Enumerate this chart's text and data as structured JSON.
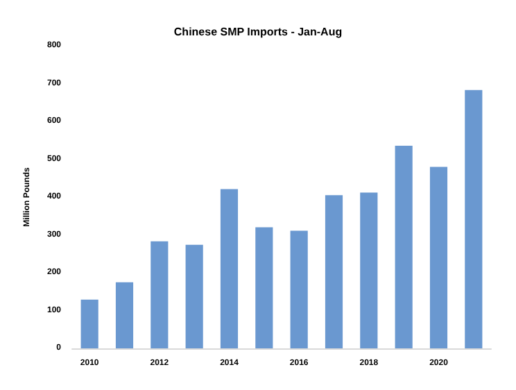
{
  "chart_data": {
    "type": "bar",
    "title": "Chinese SMP Imports - Jan-Aug",
    "ylabel": "Million Pounds",
    "categories": [
      "2010",
      null,
      "2012",
      null,
      "2014",
      null,
      "2016",
      null,
      "2018",
      null,
      "2020",
      null
    ],
    "values": [
      129,
      175,
      283,
      274,
      421,
      320,
      311,
      405,
      412,
      536,
      480,
      683
    ],
    "color": "#6a98d0",
    "ylim": [
      0,
      800
    ],
    "yticks": [
      0,
      100,
      200,
      300,
      400,
      500,
      600,
      700,
      800
    ],
    "grid": false
  }
}
